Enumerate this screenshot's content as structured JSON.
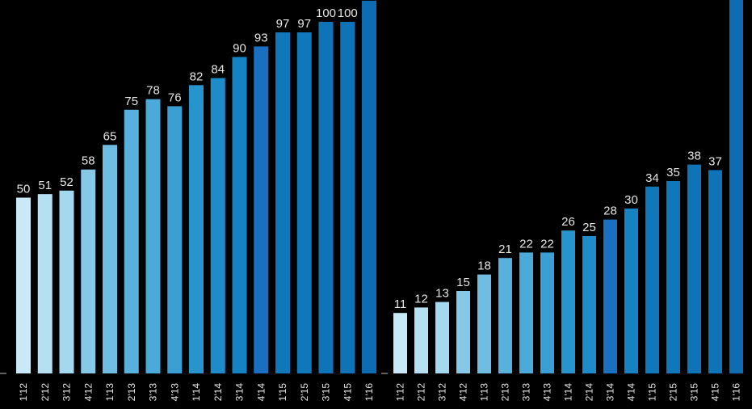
{
  "chart_data": [
    {
      "type": "bar",
      "categories": [
        "1'12",
        "2'12",
        "3'12",
        "4'12",
        "1'13",
        "2'13",
        "3'13",
        "4'13",
        "1'14",
        "2'14",
        "3'14",
        "4'14",
        "1'15",
        "2'15",
        "3'15",
        "4'15",
        "1'16"
      ],
      "values": [
        50,
        51,
        52,
        58,
        65,
        75,
        78,
        76,
        82,
        84,
        90,
        93,
        97,
        97,
        100,
        100,
        106
      ],
      "colors": [
        "#c8e9f5",
        "#b5e0f2",
        "#a4d8ef",
        "#86c8e8",
        "#6fbde3",
        "#58b1dd",
        "#4aaad9",
        "#3a9fd3",
        "#2894cd",
        "#1e8cc8",
        "#1583c3",
        "#1a6fc1",
        "#1177bb",
        "#1177bb",
        "#0f73b7",
        "#0f73b7",
        "#0d6db3"
      ],
      "ylim": [
        0,
        110
      ]
    },
    {
      "type": "bar",
      "categories": [
        "1'12",
        "2'12",
        "3'12",
        "4'12",
        "1'13",
        "2'13",
        "3'13",
        "4'13",
        "1'14",
        "2'14",
        "3'14",
        "4'14",
        "1'15",
        "2'15",
        "3'15",
        "4'15",
        "1'16"
      ],
      "values": [
        11,
        12,
        13,
        15,
        18,
        21,
        22,
        22,
        26,
        25,
        28,
        30,
        34,
        35,
        38,
        37,
        null
      ],
      "colors": [
        "#c8e9f5",
        "#b5e0f2",
        "#a4d8ef",
        "#86c8e8",
        "#6fbde3",
        "#58b1dd",
        "#4aaad9",
        "#3a9fd3",
        "#2894cd",
        "#1e8cc8",
        "#1a6fc1",
        "#1583c3",
        "#1177bb",
        "#1177bb",
        "#0f73b7",
        "#0f73b7",
        "#0d6db3"
      ],
      "ylim": [
        0,
        40
      ]
    }
  ]
}
